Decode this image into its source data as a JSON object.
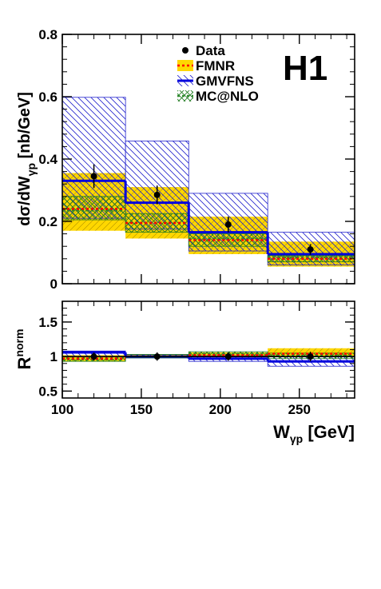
{
  "colors": {
    "data": "#000000",
    "fmnr_band": "#ffd700",
    "fmnr_line": "#ff0000",
    "gmvfns_line": "#0000dd",
    "gmvfns_hatch": "#2222cc",
    "mcnlo_line": "#2e8b2e",
    "mcnlo_hatch": "#1f7a1f"
  },
  "experiment_label": "H1",
  "chart_data": [
    {
      "type": "line",
      "panel": "top",
      "ylabel_main": "dσ/dW",
      "ylabel_sub": "γp",
      "ylabel_unit": " [nb/GeV]",
      "ylim": [
        0,
        0.8
      ],
      "xlim": [
        100,
        285
      ],
      "yticks": [
        "0",
        "0.2",
        "0.4",
        "0.6",
        "0.8"
      ],
      "ytick_values": [
        0,
        0.2,
        0.4,
        0.6,
        0.8
      ],
      "legend": {
        "placement": "top-right",
        "entries": [
          "Data",
          "FMNR",
          "GMVFNS",
          "MC@NLO"
        ]
      },
      "bins": [
        [
          100,
          140
        ],
        [
          140,
          180
        ],
        [
          180,
          230
        ],
        [
          230,
          285
        ]
      ],
      "series": [
        {
          "name": "Data",
          "x": [
            120,
            160,
            205,
            257
          ],
          "y": [
            0.345,
            0.285,
            0.19,
            0.11
          ],
          "err": [
            0.038,
            0.03,
            0.025,
            0.017
          ]
        },
        {
          "name": "FMNR",
          "central": [
            0.24,
            0.195,
            0.14,
            0.08
          ],
          "low": [
            0.17,
            0.145,
            0.095,
            0.055
          ],
          "high": [
            0.355,
            0.31,
            0.215,
            0.135
          ]
        },
        {
          "name": "GMVFNS",
          "central": [
            0.33,
            0.26,
            0.165,
            0.095
          ],
          "low": [
            0.21,
            0.175,
            0.105,
            0.06
          ],
          "high": [
            0.598,
            0.458,
            0.29,
            0.165
          ]
        },
        {
          "name": "MC@NLO",
          "central": [
            0.235,
            0.195,
            0.145,
            0.085
          ],
          "low": [
            0.205,
            0.165,
            0.12,
            0.07
          ],
          "high": [
            0.28,
            0.225,
            0.16,
            0.09
          ]
        }
      ]
    },
    {
      "type": "line",
      "panel": "ratio",
      "ylabel_main": "R",
      "ylabel_sup": "norm",
      "xlabel_main": "W",
      "xlabel_sub": "γp",
      "xlabel_unit": " [GeV]",
      "ylim": [
        0.4,
        1.8
      ],
      "xlim": [
        100,
        285
      ],
      "yticks": [
        "0.5",
        "1",
        "1.5"
      ],
      "ytick_values": [
        0.5,
        1.0,
        1.5
      ],
      "xticks": [
        "100",
        "150",
        "200",
        "250"
      ],
      "xtick_values": [
        100,
        150,
        200,
        250
      ],
      "bins": [
        [
          100,
          140
        ],
        [
          140,
          180
        ],
        [
          180,
          230
        ],
        [
          230,
          285
        ]
      ],
      "series": [
        {
          "name": "Data",
          "x": [
            120,
            160,
            205,
            257
          ],
          "y": [
            1.0,
            1.0,
            1.0,
            1.0
          ],
          "err": [
            0.06,
            0.06,
            0.06,
            0.07
          ]
        },
        {
          "name": "FMNR",
          "central": [
            0.97,
            1.0,
            1.02,
            1.04
          ],
          "low": [
            0.93,
            0.98,
            0.99,
            1.0
          ],
          "high": [
            1.02,
            1.03,
            1.06,
            1.12
          ]
        },
        {
          "name": "GMVFNS",
          "central": [
            1.06,
            1.0,
            0.97,
            0.93
          ],
          "low": [
            1.0,
            0.98,
            0.93,
            0.86
          ],
          "high": [
            1.08,
            1.03,
            1.01,
            1.0
          ]
        },
        {
          "name": "MC@NLO",
          "central": [
            0.96,
            1.0,
            1.04,
            1.01
          ],
          "low": [
            0.93,
            0.98,
            1.0,
            0.97
          ],
          "high": [
            1.0,
            1.03,
            1.07,
            1.05
          ]
        }
      ]
    }
  ]
}
